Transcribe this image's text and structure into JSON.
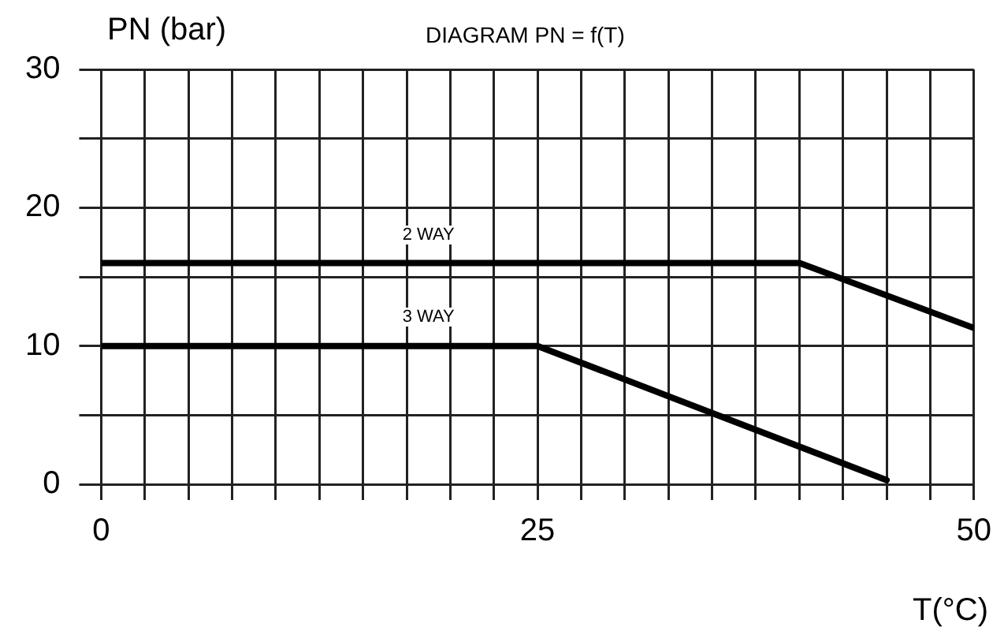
{
  "chart_data": {
    "type": "line",
    "title": "DIAGRAM PN = f(T)",
    "ylabel": "PN (bar)",
    "xlabel": "T(°C)",
    "xlim": [
      0,
      50
    ],
    "ylim": [
      0,
      30
    ],
    "xticks": [
      0,
      {
        "value": 2.5,
        "label": null
      },
      {
        "value": 5,
        "label": null
      },
      {
        "value": 7.5,
        "label": null
      },
      {
        "value": 10,
        "label": null
      },
      {
        "value": 12.5,
        "label": null
      },
      {
        "value": 15,
        "label": null
      },
      {
        "value": 17.5,
        "label": null
      },
      {
        "value": 20,
        "label": null
      },
      {
        "value": 22.5,
        "label": null
      },
      25,
      {
        "value": 27.5,
        "label": null
      },
      {
        "value": 30,
        "label": null
      },
      {
        "value": 32.5,
        "label": null
      },
      {
        "value": 35,
        "label": null
      },
      {
        "value": 37.5,
        "label": null
      },
      {
        "value": 40,
        "label": null
      },
      {
        "value": 42.5,
        "label": null
      },
      {
        "value": 45,
        "label": null
      },
      {
        "value": 47.5,
        "label": null
      },
      50
    ],
    "yticks": [
      0,
      {
        "value": 5,
        "label": null
      },
      10,
      {
        "value": 15,
        "label": null
      },
      20,
      {
        "value": 25,
        "label": null
      },
      30
    ],
    "grid": true,
    "legend": false,
    "marker": "none",
    "line_style": "solid",
    "series": [
      {
        "name": "2 WAY",
        "color": "#000000",
        "x": [
          0,
          40,
          50
        ],
        "values": [
          16,
          16,
          11.3
        ]
      },
      {
        "name": "3 WAY",
        "color": "#000000",
        "x": [
          0,
          25,
          45
        ],
        "values": [
          10,
          10,
          0.3
        ]
      }
    ]
  }
}
